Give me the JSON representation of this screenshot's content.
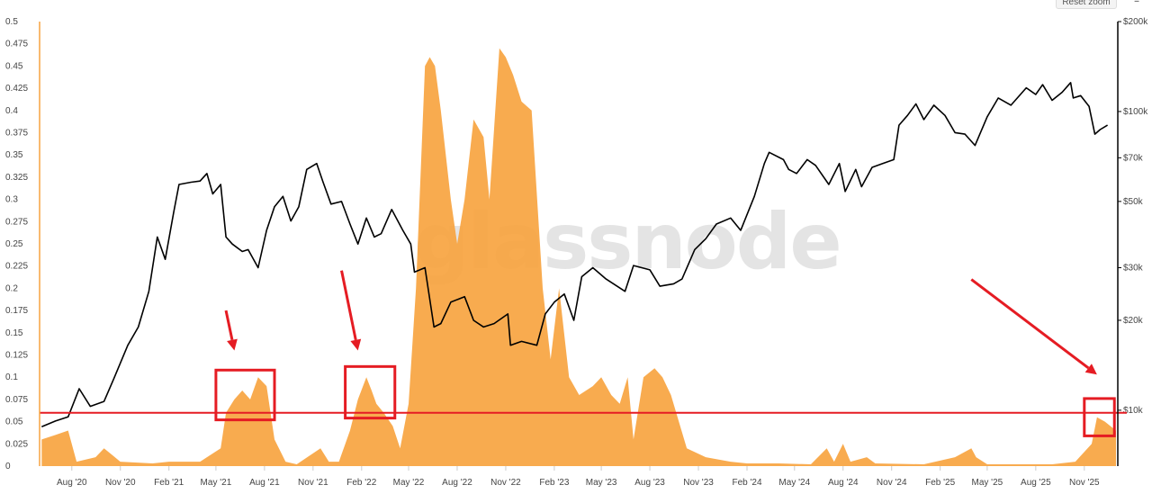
{
  "toolbar": {
    "reset_zoom_label": "Reset zoom",
    "menu_icon": "hamburger-menu-icon"
  },
  "watermark": "glassnode",
  "colors": {
    "area": "#f7a440",
    "price": "#000000",
    "annotation": "#e51c23",
    "axis": "#444444"
  },
  "chart_data": {
    "type": "area",
    "title": "",
    "x_ticks": [
      "Aug '20",
      "Nov '20",
      "Feb '21",
      "May '21",
      "Aug '21",
      "Nov '21",
      "Feb '22",
      "May '22",
      "Aug '22",
      "Nov '22",
      "Feb '23",
      "May '23",
      "Aug '23",
      "Nov '23",
      "Feb '24",
      "May '24",
      "Aug '24",
      "Nov '24",
      "Feb '25",
      "May '25",
      "Aug '25",
      "Nov '25"
    ],
    "x_range": [
      "2020-06-01",
      "2025-12-31"
    ],
    "y_left": {
      "ticks": [
        "0",
        "0.025",
        "0.05",
        "0.075",
        "0.1",
        "0.125",
        "0.15",
        "0.175",
        "0.2",
        "0.225",
        "0.25",
        "0.275",
        "0.3",
        "0.325",
        "0.35",
        "0.375",
        "0.4",
        "0.425",
        "0.45",
        "0.475",
        "0.5"
      ],
      "range": [
        0,
        0.5
      ]
    },
    "y_right": {
      "scale": "log",
      "ticks": [
        "$10k",
        "$20k",
        "$30k",
        "$50k",
        "$70k",
        "$100k",
        "$200k"
      ],
      "values": [
        10000,
        20000,
        30000,
        50000,
        70000,
        100000,
        200000
      ],
      "range": [
        6500,
        200000
      ]
    },
    "series": [
      {
        "type": "area",
        "axis": "left",
        "points": [
          [
            "2020-06-05",
            0.03
          ],
          [
            "2020-07-01",
            0.035
          ],
          [
            "2020-07-25",
            0.04
          ],
          [
            "2020-08-10",
            0.005
          ],
          [
            "2020-09-15",
            0.01
          ],
          [
            "2020-10-01",
            0.02
          ],
          [
            "2020-11-01",
            0.005
          ],
          [
            "2021-01-01",
            0.003
          ],
          [
            "2021-02-01",
            0.005
          ],
          [
            "2021-04-01",
            0.005
          ],
          [
            "2021-05-10",
            0.02
          ],
          [
            "2021-05-20",
            0.06
          ],
          [
            "2021-06-05",
            0.075
          ],
          [
            "2021-06-20",
            0.085
          ],
          [
            "2021-07-05",
            0.075
          ],
          [
            "2021-07-20",
            0.1
          ],
          [
            "2021-08-05",
            0.09
          ],
          [
            "2021-08-20",
            0.03
          ],
          [
            "2021-09-10",
            0.005
          ],
          [
            "2021-10-01",
            0.002
          ],
          [
            "2021-11-15",
            0.02
          ],
          [
            "2021-12-01",
            0.005
          ],
          [
            "2021-12-20",
            0.005
          ],
          [
            "2022-01-10",
            0.04
          ],
          [
            "2022-01-25",
            0.075
          ],
          [
            "2022-02-10",
            0.1
          ],
          [
            "2022-02-20",
            0.085
          ],
          [
            "2022-03-01",
            0.07
          ],
          [
            "2022-03-15",
            0.06
          ],
          [
            "2022-04-01",
            0.045
          ],
          [
            "2022-04-15",
            0.02
          ],
          [
            "2022-05-01",
            0.07
          ],
          [
            "2022-05-15",
            0.2
          ],
          [
            "2022-06-01",
            0.45
          ],
          [
            "2022-06-10",
            0.46
          ],
          [
            "2022-06-20",
            0.45
          ],
          [
            "2022-07-01",
            0.4
          ],
          [
            "2022-07-20",
            0.3
          ],
          [
            "2022-08-01",
            0.25
          ],
          [
            "2022-08-15",
            0.3
          ],
          [
            "2022-09-01",
            0.39
          ],
          [
            "2022-09-20",
            0.37
          ],
          [
            "2022-10-01",
            0.3
          ],
          [
            "2022-10-20",
            0.47
          ],
          [
            "2022-11-01",
            0.46
          ],
          [
            "2022-11-15",
            0.44
          ],
          [
            "2022-12-01",
            0.41
          ],
          [
            "2022-12-20",
            0.4
          ],
          [
            "2023-01-10",
            0.2
          ],
          [
            "2023-01-25",
            0.12
          ],
          [
            "2023-02-10",
            0.2
          ],
          [
            "2023-03-01",
            0.1
          ],
          [
            "2023-03-20",
            0.08
          ],
          [
            "2023-04-15",
            0.09
          ],
          [
            "2023-05-01",
            0.1
          ],
          [
            "2023-05-20",
            0.08
          ],
          [
            "2023-06-05",
            0.07
          ],
          [
            "2023-06-20",
            0.1
          ],
          [
            "2023-07-01",
            0.03
          ],
          [
            "2023-07-20",
            0.1
          ],
          [
            "2023-08-10",
            0.11
          ],
          [
            "2023-08-25",
            0.1
          ],
          [
            "2023-09-10",
            0.08
          ],
          [
            "2023-09-25",
            0.05
          ],
          [
            "2023-10-10",
            0.02
          ],
          [
            "2023-11-15",
            0.01
          ],
          [
            "2024-01-01",
            0.005
          ],
          [
            "2024-02-01",
            0.003
          ],
          [
            "2024-04-01",
            0.003
          ],
          [
            "2024-06-01",
            0.002
          ],
          [
            "2024-07-01",
            0.02
          ],
          [
            "2024-07-15",
            0.005
          ],
          [
            "2024-08-01",
            0.025
          ],
          [
            "2024-08-15",
            0.005
          ],
          [
            "2024-09-15",
            0.01
          ],
          [
            "2024-10-01",
            0.003
          ],
          [
            "2025-01-01",
            0.002
          ],
          [
            "2025-03-01",
            0.01
          ],
          [
            "2025-04-01",
            0.02
          ],
          [
            "2025-04-10",
            0.01
          ],
          [
            "2025-05-01",
            0.002
          ],
          [
            "2025-09-01",
            0.002
          ],
          [
            "2025-10-15",
            0.005
          ],
          [
            "2025-11-15",
            0.025
          ],
          [
            "2025-11-25",
            0.055
          ],
          [
            "2025-12-10",
            0.05
          ],
          [
            "2025-12-31",
            0.04
          ]
        ]
      },
      {
        "type": "line",
        "axis": "right",
        "points": [
          [
            "2020-06-05",
            8800
          ],
          [
            "2020-07-01",
            9200
          ],
          [
            "2020-07-25",
            9500
          ],
          [
            "2020-08-15",
            11800
          ],
          [
            "2020-09-05",
            10300
          ],
          [
            "2020-10-01",
            10700
          ],
          [
            "2020-10-20",
            12800
          ],
          [
            "2020-11-15",
            16500
          ],
          [
            "2020-12-05",
            19000
          ],
          [
            "2020-12-25",
            25000
          ],
          [
            "2021-01-10",
            38000
          ],
          [
            "2021-01-25",
            32000
          ],
          [
            "2021-02-10",
            46000
          ],
          [
            "2021-02-20",
            57000
          ],
          [
            "2021-03-15",
            58000
          ],
          [
            "2021-04-01",
            58500
          ],
          [
            "2021-04-14",
            62000
          ],
          [
            "2021-04-25",
            53000
          ],
          [
            "2021-05-10",
            57000
          ],
          [
            "2021-05-20",
            38000
          ],
          [
            "2021-06-01",
            36000
          ],
          [
            "2021-06-20",
            34000
          ],
          [
            "2021-07-01",
            34500
          ],
          [
            "2021-07-20",
            30000
          ],
          [
            "2021-08-05",
            40000
          ],
          [
            "2021-08-20",
            48000
          ],
          [
            "2021-09-05",
            52000
          ],
          [
            "2021-09-20",
            43000
          ],
          [
            "2021-10-05",
            48000
          ],
          [
            "2021-10-20",
            64000
          ],
          [
            "2021-11-08",
            67000
          ],
          [
            "2021-11-20",
            58000
          ],
          [
            "2021-12-05",
            49000
          ],
          [
            "2021-12-25",
            50000
          ],
          [
            "2022-01-10",
            42000
          ],
          [
            "2022-01-25",
            36000
          ],
          [
            "2022-02-10",
            44000
          ],
          [
            "2022-02-25",
            38000
          ],
          [
            "2022-03-10",
            39000
          ],
          [
            "2022-03-30",
            47000
          ],
          [
            "2022-04-20",
            40000
          ],
          [
            "2022-05-05",
            36000
          ],
          [
            "2022-05-12",
            29000
          ],
          [
            "2022-06-01",
            30000
          ],
          [
            "2022-06-18",
            19000
          ],
          [
            "2022-07-01",
            19500
          ],
          [
            "2022-07-20",
            23000
          ],
          [
            "2022-08-15",
            24000
          ],
          [
            "2022-09-01",
            20000
          ],
          [
            "2022-09-20",
            19000
          ],
          [
            "2022-10-10",
            19500
          ],
          [
            "2022-11-05",
            21000
          ],
          [
            "2022-11-10",
            16500
          ],
          [
            "2022-12-01",
            17000
          ],
          [
            "2022-12-30",
            16500
          ],
          [
            "2023-01-15",
            21000
          ],
          [
            "2023-02-01",
            23000
          ],
          [
            "2023-02-20",
            24500
          ],
          [
            "2023-03-10",
            20000
          ],
          [
            "2023-03-25",
            28000
          ],
          [
            "2023-04-15",
            30000
          ],
          [
            "2023-05-10",
            27500
          ],
          [
            "2023-06-15",
            25000
          ],
          [
            "2023-07-01",
            30500
          ],
          [
            "2023-08-01",
            29500
          ],
          [
            "2023-08-20",
            26000
          ],
          [
            "2023-09-15",
            26500
          ],
          [
            "2023-10-01",
            27500
          ],
          [
            "2023-10-25",
            34500
          ],
          [
            "2023-11-15",
            37500
          ],
          [
            "2023-12-05",
            42000
          ],
          [
            "2024-01-01",
            44000
          ],
          [
            "2024-01-20",
            40000
          ],
          [
            "2024-02-15",
            52000
          ],
          [
            "2024-03-05",
            67000
          ],
          [
            "2024-03-14",
            73000
          ],
          [
            "2024-04-10",
            69000
          ],
          [
            "2024-04-20",
            64000
          ],
          [
            "2024-05-05",
            62000
          ],
          [
            "2024-05-25",
            69000
          ],
          [
            "2024-06-10",
            66000
          ],
          [
            "2024-07-05",
            57000
          ],
          [
            "2024-07-25",
            67000
          ],
          [
            "2024-08-05",
            54000
          ],
          [
            "2024-08-25",
            64000
          ],
          [
            "2024-09-05",
            56000
          ],
          [
            "2024-09-25",
            65000
          ],
          [
            "2024-10-15",
            67000
          ],
          [
            "2024-11-05",
            69000
          ],
          [
            "2024-11-15",
            90000
          ],
          [
            "2024-12-01",
            97000
          ],
          [
            "2024-12-17",
            106000
          ],
          [
            "2025-01-01",
            94000
          ],
          [
            "2025-01-20",
            105000
          ],
          [
            "2025-02-10",
            97000
          ],
          [
            "2025-03-01",
            85000
          ],
          [
            "2025-03-20",
            84000
          ],
          [
            "2025-04-08",
            77000
          ],
          [
            "2025-05-01",
            96000
          ],
          [
            "2025-05-22",
            111000
          ],
          [
            "2025-06-15",
            105000
          ],
          [
            "2025-07-14",
            120000
          ],
          [
            "2025-08-01",
            114000
          ],
          [
            "2025-08-14",
            123000
          ],
          [
            "2025-09-01",
            109000
          ],
          [
            "2025-09-20",
            116000
          ],
          [
            "2025-10-06",
            125000
          ],
          [
            "2025-10-11",
            111000
          ],
          [
            "2025-10-25",
            113000
          ],
          [
            "2025-11-10",
            104000
          ],
          [
            "2025-11-21",
            84000
          ],
          [
            "2025-12-01",
            87000
          ],
          [
            "2025-12-15",
            90000
          ]
        ]
      }
    ],
    "annotations": {
      "hline_value": 0.06,
      "boxes": [
        {
          "x0": "2021-05-01",
          "x1": "2021-08-20",
          "y0": 0.052,
          "y1": 0.108
        },
        {
          "x0": "2022-01-01",
          "x1": "2022-04-05",
          "y0": 0.054,
          "y1": 0.112
        },
        {
          "x0": "2025-11-01",
          "x1": "2025-12-28",
          "y0": 0.034,
          "y1": 0.076
        }
      ],
      "arrows": [
        {
          "from": [
            "2021-05-20",
            0.175
          ],
          "to": [
            "2021-06-05",
            0.13
          ]
        },
        {
          "from": [
            "2021-12-25",
            0.22
          ],
          "to": [
            "2022-01-25",
            0.13
          ]
        },
        {
          "from": [
            "2025-04-01",
            0.21
          ],
          "to": [
            "2025-11-25",
            0.103
          ]
        }
      ]
    }
  }
}
